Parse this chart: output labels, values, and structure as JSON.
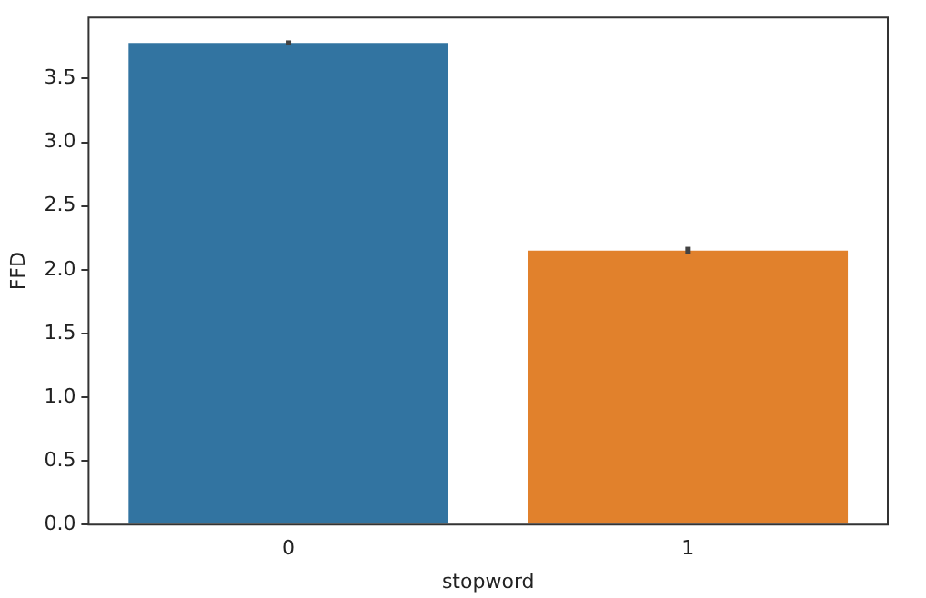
{
  "chart_data": {
    "type": "bar",
    "xlabel": "stopword",
    "ylabel": "FFD",
    "categories": [
      "0",
      "1"
    ],
    "values": [
      3.78,
      2.15
    ],
    "colors": [
      "#3274a1",
      "#e1812c"
    ],
    "errors": [
      [
        3.76,
        3.8
      ],
      [
        2.12,
        2.18
      ]
    ],
    "ylim": [
      0,
      3.98
    ],
    "yticks": [
      {
        "value": 0,
        "label": "0.0"
      },
      0.5,
      {
        "value": 1,
        "label": "1.0"
      },
      1.5,
      {
        "value": 2,
        "label": "2.0"
      },
      2.5,
      {
        "value": 3,
        "label": "3.0"
      },
      3.5
    ],
    "grid": false,
    "legend": false
  }
}
